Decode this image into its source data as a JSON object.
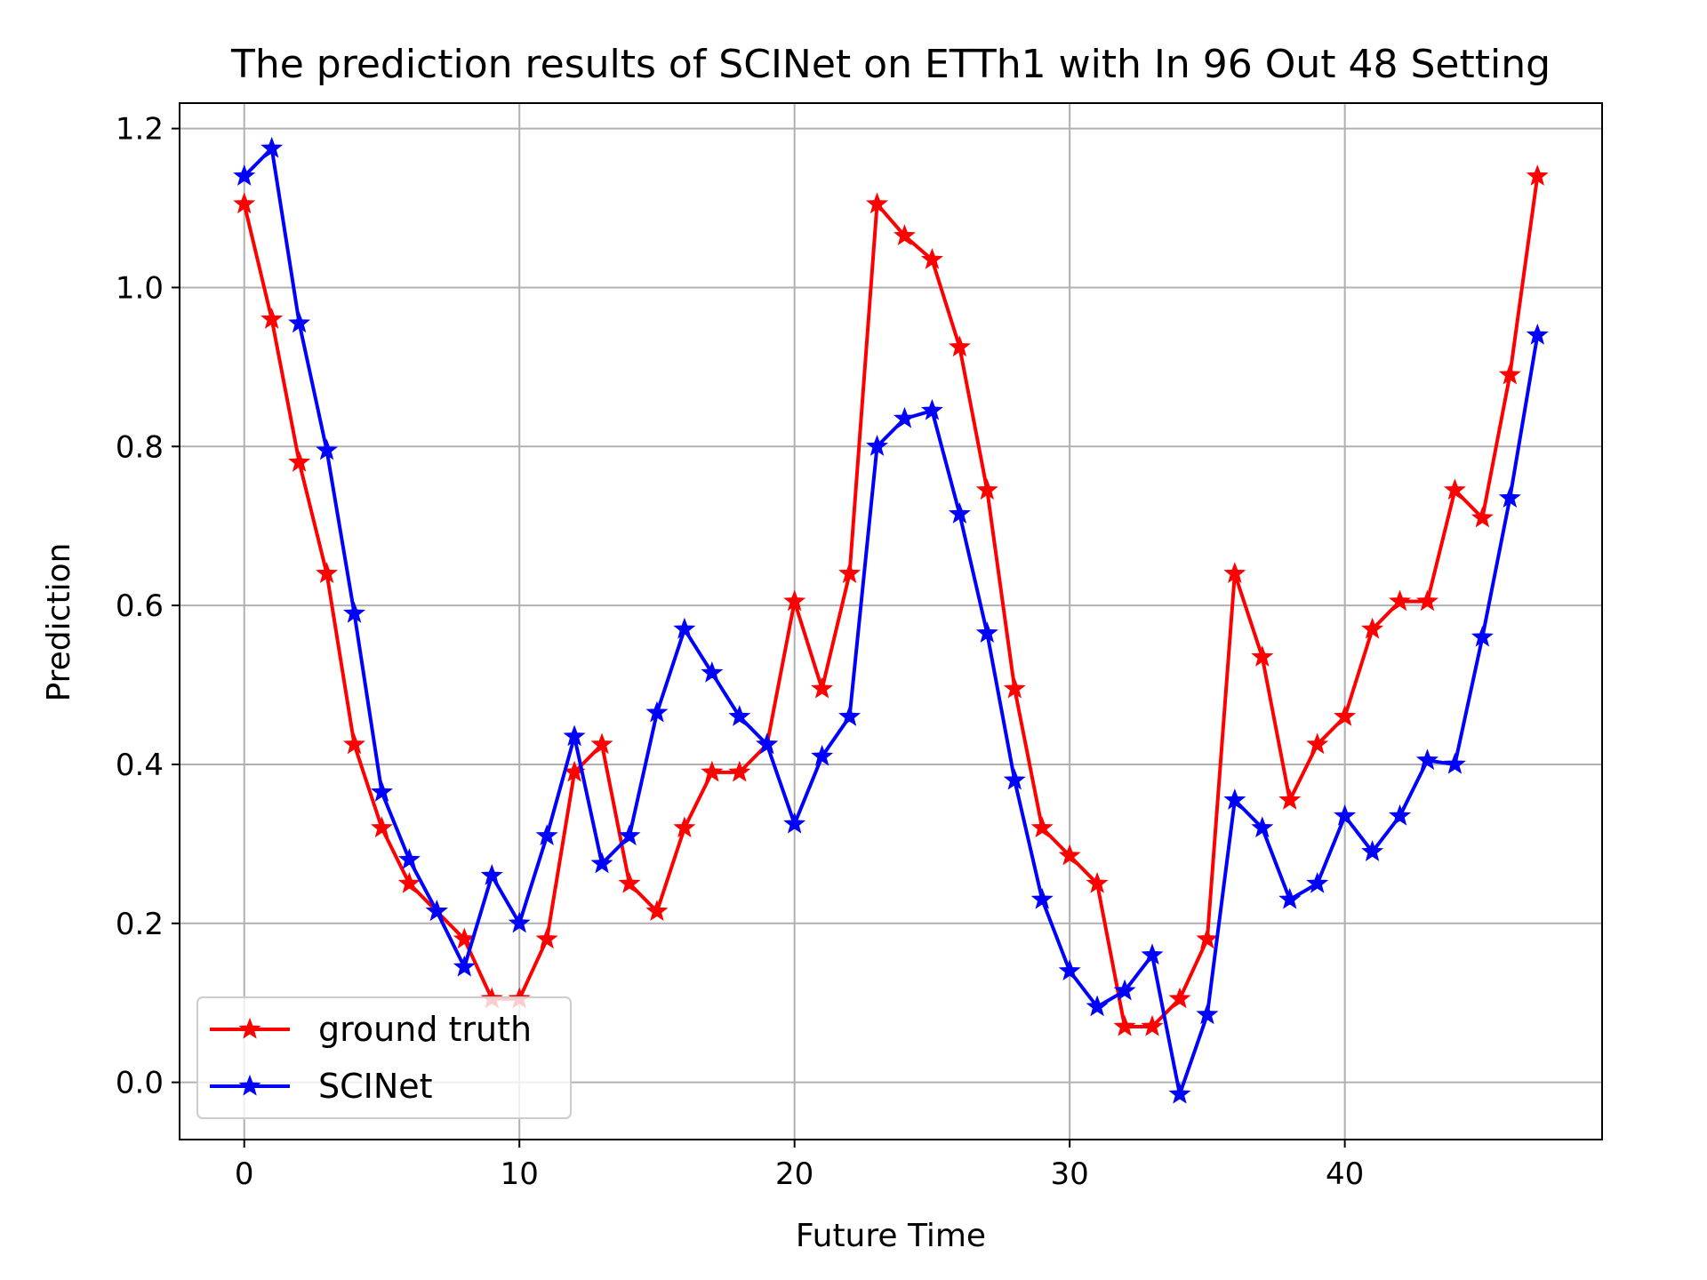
{
  "chart_data": {
    "type": "line",
    "title": "The prediction results of SCINet on ETTh1 with In 96 Out 48 Setting",
    "xlabel": "Future Time",
    "ylabel": "Prediction",
    "xlim": [
      -2.35,
      49.35
    ],
    "ylim": [
      -0.072,
      1.232
    ],
    "xticks": [
      0,
      10,
      20,
      30,
      40
    ],
    "xtick_labels": [
      "0",
      "10",
      "20",
      "30",
      "40"
    ],
    "yticks": [
      0.0,
      0.2,
      0.4,
      0.6,
      0.8,
      1.0,
      1.2
    ],
    "ytick_labels": [
      "0.0",
      "0.2",
      "0.4",
      "0.6",
      "0.8",
      "1.0",
      "1.2"
    ],
    "grid": true,
    "legend": {
      "placement": "lower-left"
    },
    "x": [
      0,
      1,
      2,
      3,
      4,
      5,
      6,
      7,
      8,
      9,
      10,
      11,
      12,
      13,
      14,
      15,
      16,
      17,
      18,
      19,
      20,
      21,
      22,
      23,
      24,
      25,
      26,
      27,
      28,
      29,
      30,
      31,
      32,
      33,
      34,
      35,
      36,
      37,
      38,
      39,
      40,
      41,
      42,
      43,
      44,
      45,
      46,
      47
    ],
    "series": [
      {
        "name": "ground truth",
        "color": "#ff0000",
        "marker": "star",
        "values": [
          1.105,
          0.96,
          0.78,
          0.64,
          0.425,
          0.32,
          0.25,
          0.215,
          0.18,
          0.105,
          0.105,
          0.18,
          0.39,
          0.425,
          0.25,
          0.215,
          0.32,
          0.39,
          0.39,
          0.425,
          0.605,
          0.495,
          0.64,
          1.105,
          1.065,
          1.035,
          0.925,
          0.745,
          0.495,
          0.32,
          0.285,
          0.25,
          0.07,
          0.07,
          0.105,
          0.18,
          0.64,
          0.535,
          0.355,
          0.425,
          0.46,
          0.57,
          0.605,
          0.605,
          0.745,
          0.71,
          0.89,
          1.14
        ]
      },
      {
        "name": "SCINet",
        "color": "#0000ff",
        "marker": "star",
        "values": [
          1.14,
          1.175,
          0.955,
          0.795,
          0.59,
          0.365,
          0.28,
          0.215,
          0.145,
          0.26,
          0.2,
          0.31,
          0.435,
          0.275,
          0.31,
          0.465,
          0.57,
          0.515,
          0.46,
          0.425,
          0.325,
          0.41,
          0.46,
          0.8,
          0.835,
          0.845,
          0.715,
          0.565,
          0.38,
          0.23,
          0.14,
          0.095,
          0.115,
          0.16,
          -0.015,
          0.085,
          0.355,
          0.32,
          0.23,
          0.25,
          0.335,
          0.29,
          0.335,
          0.405,
          0.4,
          0.56,
          0.735,
          0.94
        ]
      }
    ]
  }
}
